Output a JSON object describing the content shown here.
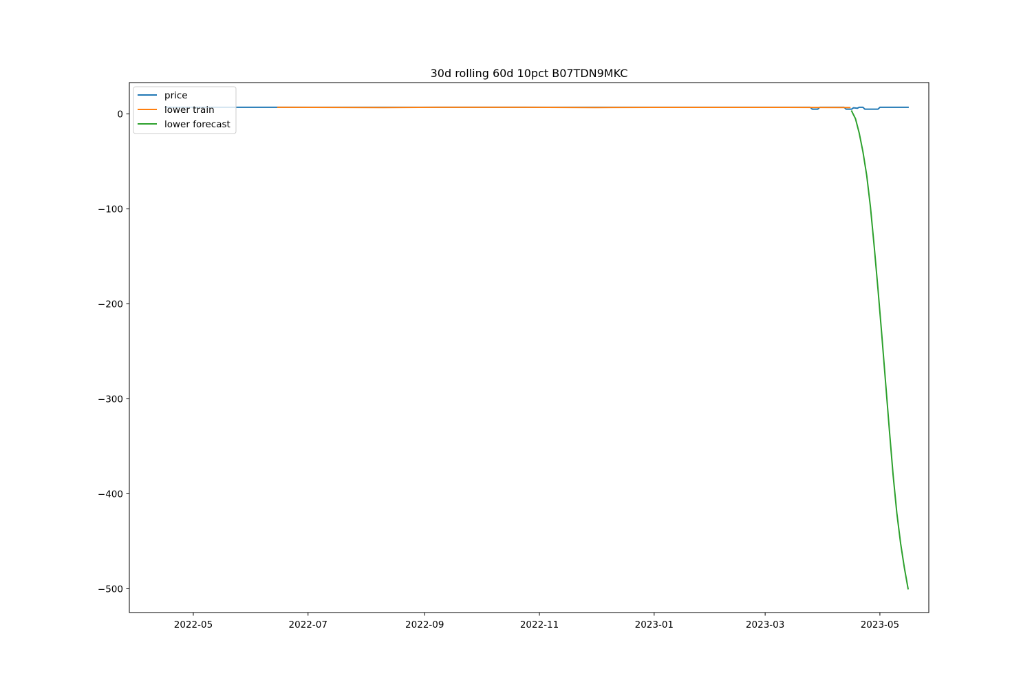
{
  "chart_data": {
    "type": "line",
    "title": "30d rolling 60d 10pct B07TDN9MKC",
    "xlabel": "",
    "ylabel": "",
    "x_type": "date",
    "xlim": [
      "2022-03-28",
      "2023-05-27"
    ],
    "ylim": [
      -525,
      33
    ],
    "x_ticks": [
      "2022-05-01",
      "2022-07-01",
      "2022-09-01",
      "2022-11-01",
      "2023-01-01",
      "2023-03-01",
      "2023-05-01"
    ],
    "x_tick_labels": [
      "2022-05",
      "2022-07",
      "2022-09",
      "2022-11",
      "2023-01",
      "2023-03",
      "2023-05"
    ],
    "y_ticks": [
      0,
      -100,
      -200,
      -300,
      -400,
      -500
    ],
    "y_tick_labels": [
      "0",
      "−100",
      "−200",
      "−300",
      "−400",
      "−500"
    ],
    "grid": false,
    "legend_position": "upper-left",
    "series": [
      {
        "name": "price",
        "color": "#1f77b4",
        "points": [
          [
            "2022-04-16",
            7.0
          ],
          [
            "2022-06-15",
            7.0
          ],
          [
            "2022-09-01",
            7.0
          ],
          [
            "2022-12-01",
            7.0
          ],
          [
            "2023-03-25",
            7.0
          ],
          [
            "2023-03-26",
            5.0
          ],
          [
            "2023-03-29",
            5.0
          ],
          [
            "2023-03-30",
            7.0
          ],
          [
            "2023-04-12",
            7.0
          ],
          [
            "2023-04-13",
            5.0
          ],
          [
            "2023-04-16",
            5.0
          ],
          [
            "2023-04-17",
            6.5
          ],
          [
            "2023-04-19",
            6.0
          ],
          [
            "2023-04-20",
            7.0
          ],
          [
            "2023-04-22",
            7.0
          ],
          [
            "2023-04-23",
            5.0
          ],
          [
            "2023-04-30",
            5.0
          ],
          [
            "2023-05-01",
            7.0
          ],
          [
            "2023-05-16",
            7.0
          ]
        ]
      },
      {
        "name": "lower train",
        "color": "#ff7f0e",
        "points": [
          [
            "2022-06-15",
            7.0
          ],
          [
            "2022-08-10",
            6.8
          ],
          [
            "2022-09-10",
            7.0
          ],
          [
            "2022-10-20",
            7.0
          ],
          [
            "2022-12-01",
            6.8
          ],
          [
            "2023-01-01",
            6.9
          ],
          [
            "2023-03-01",
            6.9
          ],
          [
            "2023-04-15",
            6.8
          ]
        ]
      },
      {
        "name": "lower forecast",
        "color": "#2ca02c",
        "points": [
          [
            "2023-04-16",
            3.0
          ],
          [
            "2023-04-18",
            -5.0
          ],
          [
            "2023-04-20",
            -20.0
          ],
          [
            "2023-04-22",
            -40.0
          ],
          [
            "2023-04-24",
            -65.0
          ],
          [
            "2023-04-26",
            -98.0
          ],
          [
            "2023-04-28",
            -140.0
          ],
          [
            "2023-04-30",
            -185.0
          ],
          [
            "2023-05-02",
            -232.0
          ],
          [
            "2023-05-04",
            -282.0
          ],
          [
            "2023-05-06",
            -332.0
          ],
          [
            "2023-05-08",
            -380.0
          ],
          [
            "2023-05-10",
            -420.0
          ],
          [
            "2023-05-12",
            -452.0
          ],
          [
            "2023-05-14",
            -478.0
          ],
          [
            "2023-05-16",
            -500.0
          ]
        ]
      }
    ]
  }
}
